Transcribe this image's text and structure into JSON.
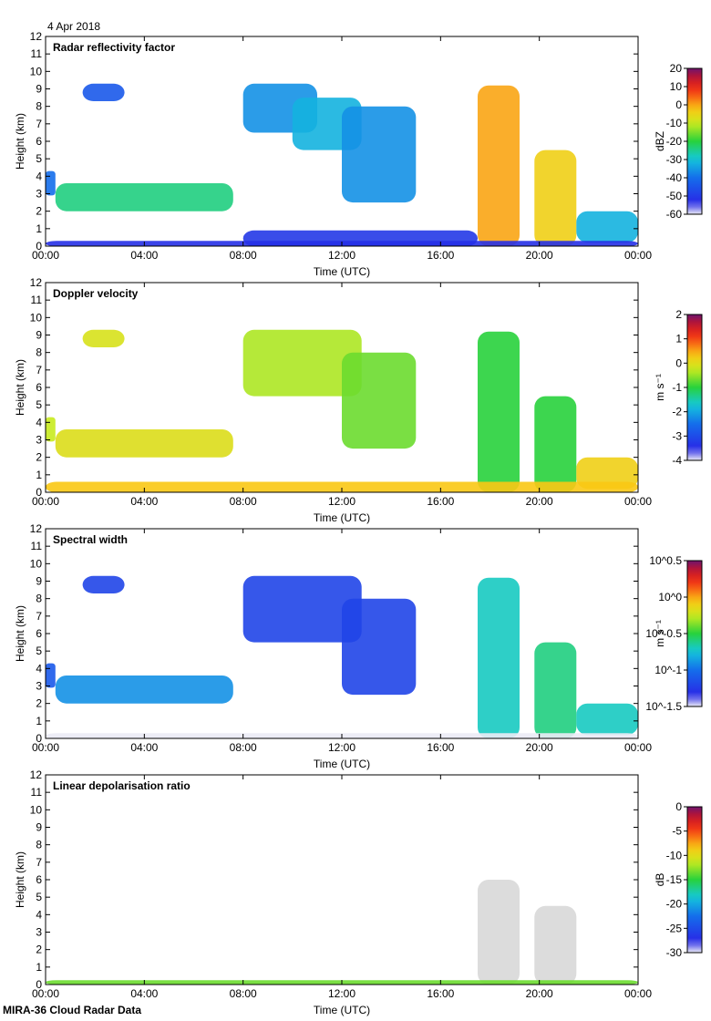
{
  "date": "4 Apr 2018",
  "footer": "MIRA-36 Cloud Radar Data",
  "chart_data": [
    {
      "type": "heatmap",
      "title": "Radar reflectivity factor",
      "xlabel": "Time (UTC)",
      "ylabel": "Height (km)",
      "xticks": [
        "00:00",
        "04:00",
        "08:00",
        "12:00",
        "16:00",
        "20:00",
        "00:00"
      ],
      "xlim_hours": [
        0,
        24
      ],
      "ylim_km": [
        0,
        12
      ],
      "yticks": [
        0,
        1,
        2,
        3,
        4,
        5,
        6,
        7,
        8,
        9,
        10,
        11,
        12
      ],
      "colorbar": {
        "label": "dBZ",
        "ticks": [
          "20",
          "10",
          "0",
          "-10",
          "-20",
          "-30",
          "-40",
          "-50",
          "-60"
        ],
        "range": [
          -60,
          20
        ]
      },
      "features": [
        {
          "t0": 0.0,
          "t1": 0.4,
          "h0": 2.9,
          "h1": 4.3,
          "level": 0.25
        },
        {
          "t0": 0.4,
          "t1": 7.6,
          "h0": 2.0,
          "h1": 3.6,
          "level": 0.45
        },
        {
          "t0": 1.5,
          "t1": 3.2,
          "h0": 8.3,
          "h1": 9.3,
          "level": 0.2
        },
        {
          "t0": 8.0,
          "t1": 11.0,
          "h0": 6.5,
          "h1": 9.3,
          "level": 0.3
        },
        {
          "t0": 10.0,
          "t1": 12.8,
          "h0": 5.5,
          "h1": 8.5,
          "level": 0.35
        },
        {
          "t0": 12.0,
          "t1": 15.0,
          "h0": 2.5,
          "h1": 8.0,
          "level": 0.3
        },
        {
          "t0": 17.5,
          "t1": 19.2,
          "h0": 0.0,
          "h1": 9.2,
          "level": 0.75
        },
        {
          "t0": 19.8,
          "t1": 21.5,
          "h0": 0.0,
          "h1": 5.5,
          "level": 0.7
        },
        {
          "t0": 21.5,
          "t1": 24.0,
          "h0": 0.2,
          "h1": 2.0,
          "level": 0.35
        },
        {
          "t0": 8.0,
          "t1": 17.5,
          "h0": 0.0,
          "h1": 0.9,
          "level": 0.12
        },
        {
          "t0": 0.0,
          "t1": 24.0,
          "h0": 0.0,
          "h1": 0.3,
          "level": 0.1
        }
      ]
    },
    {
      "type": "heatmap",
      "title": "Doppler velocity",
      "xlabel": "Time (UTC)",
      "ylabel": "Height (km)",
      "xticks": [
        "00:00",
        "04:00",
        "08:00",
        "12:00",
        "16:00",
        "20:00",
        "00:00"
      ],
      "xlim_hours": [
        0,
        24
      ],
      "ylim_km": [
        0,
        12
      ],
      "yticks": [
        0,
        1,
        2,
        3,
        4,
        5,
        6,
        7,
        8,
        9,
        10,
        11,
        12
      ],
      "colorbar": {
        "label": "m s⁻¹",
        "ticks": [
          "2",
          "1",
          "0",
          "-1",
          "-2",
          "-3",
          "-4"
        ],
        "range": [
          -4,
          2
        ]
      },
      "features": [
        {
          "t0": 0.0,
          "t1": 0.4,
          "h0": 2.9,
          "h1": 4.3,
          "level": 0.62
        },
        {
          "t0": 0.4,
          "t1": 7.6,
          "h0": 2.0,
          "h1": 3.6,
          "level": 0.66
        },
        {
          "t0": 1.5,
          "t1": 3.2,
          "h0": 8.3,
          "h1": 9.3,
          "level": 0.65
        },
        {
          "t0": 8.0,
          "t1": 12.8,
          "h0": 5.5,
          "h1": 9.3,
          "level": 0.6
        },
        {
          "t0": 12.0,
          "t1": 15.0,
          "h0": 2.5,
          "h1": 8.0,
          "level": 0.55
        },
        {
          "t0": 17.5,
          "t1": 19.2,
          "h0": 0.0,
          "h1": 9.2,
          "level": 0.5
        },
        {
          "t0": 19.8,
          "t1": 21.5,
          "h0": 0.0,
          "h1": 5.5,
          "level": 0.5
        },
        {
          "t0": 21.5,
          "t1": 24.0,
          "h0": 0.2,
          "h1": 2.0,
          "level": 0.7
        },
        {
          "t0": 0.0,
          "t1": 24.0,
          "h0": 0.0,
          "h1": 0.6,
          "level": 0.72
        }
      ]
    },
    {
      "type": "heatmap",
      "title": "Spectral width",
      "xlabel": "Time (UTC)",
      "ylabel": "Height (km)",
      "xticks": [
        "00:00",
        "04:00",
        "08:00",
        "12:00",
        "16:00",
        "20:00",
        "00:00"
      ],
      "xlim_hours": [
        0,
        24
      ],
      "ylim_km": [
        0,
        12
      ],
      "yticks": [
        0,
        1,
        2,
        3,
        4,
        5,
        6,
        7,
        8,
        9,
        10,
        11,
        12
      ],
      "colorbar": {
        "label": "m s⁻¹",
        "ticks": [
          "10^0.5",
          "10^0",
          "10^-0.5",
          "10^-1",
          "10^-1.5"
        ],
        "range": [
          -1.5,
          0.5
        ]
      },
      "features": [
        {
          "t0": 0.0,
          "t1": 0.4,
          "h0": 2.9,
          "h1": 4.3,
          "level": 0.2
        },
        {
          "t0": 0.4,
          "t1": 7.6,
          "h0": 2.0,
          "h1": 3.6,
          "level": 0.3
        },
        {
          "t0": 1.5,
          "t1": 3.2,
          "h0": 8.3,
          "h1": 9.3,
          "level": 0.15
        },
        {
          "t0": 8.0,
          "t1": 12.8,
          "h0": 5.5,
          "h1": 9.3,
          "level": 0.15
        },
        {
          "t0": 12.0,
          "t1": 15.0,
          "h0": 2.5,
          "h1": 8.0,
          "level": 0.15
        },
        {
          "t0": 17.5,
          "t1": 19.2,
          "h0": 0.0,
          "h1": 9.2,
          "level": 0.4
        },
        {
          "t0": 19.8,
          "t1": 21.5,
          "h0": 0.0,
          "h1": 5.5,
          "level": 0.45
        },
        {
          "t0": 21.5,
          "t1": 24.0,
          "h0": 0.2,
          "h1": 2.0,
          "level": 0.4
        },
        {
          "t0": 0.0,
          "t1": 24.0,
          "h0": 0.0,
          "h1": 0.3,
          "level": 0.0
        }
      ]
    },
    {
      "type": "heatmap",
      "title": "Linear depolarisation ratio",
      "xlabel": "Time (UTC)",
      "ylabel": "Height (km)",
      "xticks": [
        "00:00",
        "04:00",
        "08:00",
        "12:00",
        "16:00",
        "20:00",
        "00:00"
      ],
      "xlim_hours": [
        0,
        24
      ],
      "ylim_km": [
        0,
        12
      ],
      "yticks": [
        0,
        1,
        2,
        3,
        4,
        5,
        6,
        7,
        8,
        9,
        10,
        11,
        12
      ],
      "colorbar": {
        "label": "dB",
        "ticks": [
          "0",
          "-5",
          "-10",
          "-15",
          "-20",
          "-25",
          "-30"
        ],
        "range": [
          -30,
          0
        ]
      },
      "features": [
        {
          "t0": 17.5,
          "t1": 19.2,
          "h0": 0.0,
          "h1": 6.0,
          "level": 0.0
        },
        {
          "t0": 19.8,
          "t1": 21.5,
          "h0": 0.0,
          "h1": 4.5,
          "level": 0.0
        },
        {
          "t0": 0.0,
          "t1": 24.0,
          "h0": 0.0,
          "h1": 0.25,
          "level": 0.55
        }
      ]
    }
  ]
}
